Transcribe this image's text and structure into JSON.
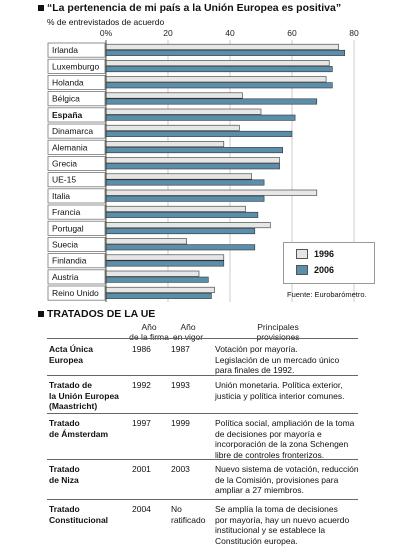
{
  "chart_data": {
    "type": "bar",
    "title": "“La pertenencia de mi país a la Unión Europea es positiva”",
    "subtitle": "% de entrevistados de acuerdo",
    "x_ticks": [
      "0%",
      "20",
      "40",
      "60",
      "80"
    ],
    "xlim": [
      0,
      80
    ],
    "categories": [
      "Irlanda",
      "Luxemburgo",
      "Holanda",
      "Bélgica",
      "España",
      "Dinamarca",
      "Alemania",
      "Grecia",
      "UE-15",
      "Italia",
      "Francia",
      "Portugal",
      "Suecia",
      "Finlandia",
      "Austria",
      "Reino Unido"
    ],
    "bold_category": "España",
    "series": [
      {
        "name": "1996",
        "color": "#e6e6e6",
        "values": [
          75,
          72,
          71,
          44,
          50,
          43,
          38,
          56,
          47,
          68,
          45,
          53,
          26,
          38,
          30,
          35
        ]
      },
      {
        "name": "2006",
        "color": "#5b8eab",
        "values": [
          77,
          73,
          73,
          68,
          61,
          60,
          57,
          56,
          51,
          51,
          49,
          48,
          48,
          38,
          33,
          34
        ]
      }
    ],
    "legend_placement": "bottom-right",
    "grid": true
  },
  "source": "Fuente: Eurobarómetro.",
  "treaties": {
    "title": "TRATADOS DE LA UE",
    "headers": {
      "firma": [
        "Año",
        "de la firma"
      ],
      "vigor": [
        "Año",
        "en vigor"
      ],
      "provisiones": [
        "Principales",
        "provisiones"
      ]
    },
    "rows": [
      {
        "name": [
          "Acta Única",
          "Europea"
        ],
        "firma": "1986",
        "vigor": [
          "1987"
        ],
        "provisiones": [
          "Votación por mayoría.",
          "Legislación de un mercado único",
          "para finales de 1992."
        ]
      },
      {
        "name": [
          "Tratado de",
          "la Unión Europea",
          "(Maastricht)"
        ],
        "firma": "1992",
        "vigor": [
          "1993"
        ],
        "provisiones": [
          "Unión monetaria. Política exterior,",
          "justicia y política interior comunes."
        ]
      },
      {
        "name": [
          "Tratado",
          "de Ámsterdam"
        ],
        "firma": "1997",
        "vigor": [
          "1999"
        ],
        "provisiones": [
          "Política social, ampliación de la toma",
          "de decisiones por mayoría e",
          "incorporación de la zona Schengen",
          "libre de controles fronterizos."
        ]
      },
      {
        "name": [
          "Tratado",
          "de Niza"
        ],
        "firma": "2001",
        "vigor": [
          "2003"
        ],
        "provisiones": [
          "Nuevo sistema de votación, reducción",
          "de la Comisión, provisiones para",
          "ampliar a 27 miembros."
        ]
      },
      {
        "name": [
          "Tratado",
          "Constitucional"
        ],
        "firma": "2004",
        "vigor": [
          "No",
          "ratificado"
        ],
        "provisiones": [
          "Se amplía la toma de decisiones",
          "por mayoría, hay un nuevo acuerdo",
          "institucional y se establece la",
          "Constitución europea."
        ]
      }
    ]
  }
}
